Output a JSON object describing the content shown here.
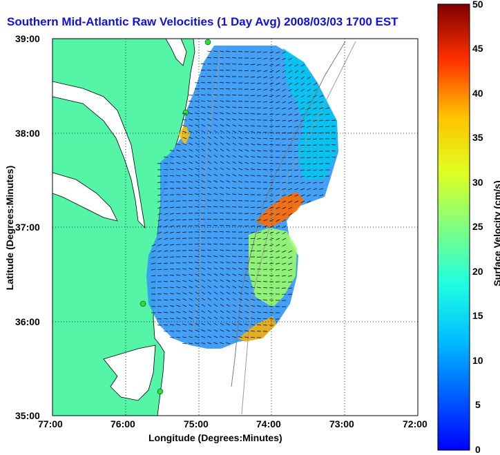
{
  "title": "Southern Mid-Atlantic Raw Velocities (1 Day Avg) 2008/03/03 1700 EST",
  "xlabel": "Longitude (Degrees:Minutes)",
  "ylabel": "Latitude (Degrees:Minutes)",
  "colorbar_label": "Surface Velocity (cm/s)",
  "x_ticks": [
    "77:00",
    "76:00",
    "75:00",
    "74:00",
    "73:00",
    "72:00"
  ],
  "y_ticks": [
    "39:00",
    "38:00",
    "37:00",
    "36:00",
    "35:00"
  ],
  "colorbar_ticks": [
    "50",
    "45",
    "40",
    "35",
    "30",
    "25",
    "20",
    "15",
    "10",
    "5",
    "0"
  ],
  "colors": {
    "land": "#55f5a8",
    "title": "#1010e0",
    "grid": "#000000"
  },
  "chart_data": {
    "type": "heatmap",
    "map_kind": "surface current velocity field (HF radar)",
    "xlim": [
      "77:00",
      "72:00"
    ],
    "ylim": [
      "35:00",
      "39:00"
    ],
    "colorbar_range": [
      0,
      50
    ],
    "colorbar_units": "cm/s",
    "grid": true
  }
}
